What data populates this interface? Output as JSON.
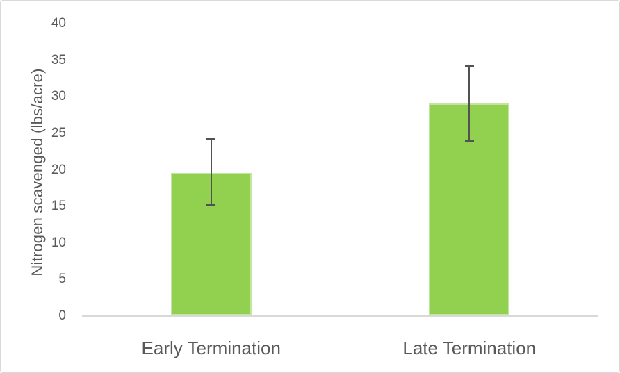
{
  "chart_data": {
    "type": "bar",
    "categories": [
      "Early Termination",
      "Late Termination"
    ],
    "values": [
      19.6,
      29.1
    ],
    "error_plus": [
      4.6,
      5.2
    ],
    "error_minus": [
      4.5,
      5.2
    ],
    "title": "",
    "xlabel": "",
    "ylabel": "Nitrogen scavenged (lbs/acre)",
    "ylim": [
      0,
      40
    ],
    "yticks": [
      0,
      5,
      10,
      15,
      20,
      25,
      30,
      35,
      40
    ],
    "grid": "off",
    "legend": "none",
    "colors": {
      "bar_fill": "#92D050",
      "error_bar": "#525252",
      "axis_line": "#D9D9D9",
      "text": "#595959",
      "chart_border": "#D9D9D9",
      "background": "#FFFFFF"
    }
  }
}
